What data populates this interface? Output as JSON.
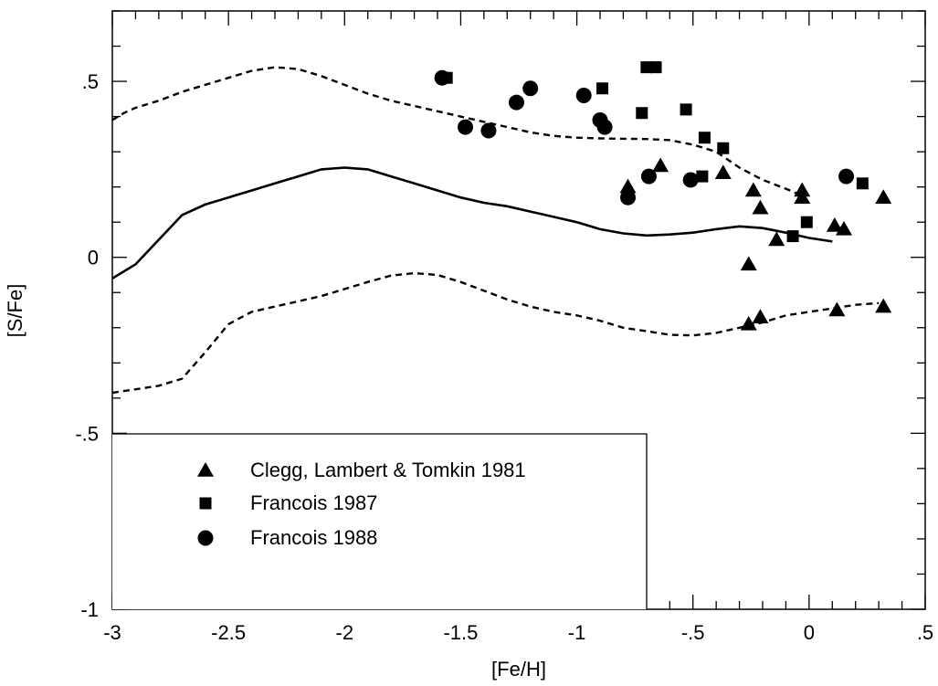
{
  "chart_data": {
    "type": "scatter",
    "title": "",
    "xlabel": "[Fe/H]",
    "ylabel": "[S/Fe]",
    "xlim": [
      -3,
      0.5
    ],
    "ylim": [
      -1,
      0.7
    ],
    "x_ticks": [
      -3,
      -2.5,
      -2,
      -1.5,
      -1,
      -0.5,
      0,
      0.5
    ],
    "x_tick_labels": [
      "-3",
      "-2.5",
      "-2",
      "-1.5",
      "-1",
      "-.5",
      "0",
      ".5"
    ],
    "y_ticks": [
      -1,
      -0.5,
      0,
      0.5
    ],
    "y_tick_labels": [
      "-1",
      "-.5",
      "0",
      ".5"
    ],
    "x_minor_step": 0.1,
    "y_minor_step": 0.1,
    "grid": false,
    "legend_position": "bottom-left",
    "series": [
      {
        "name": "Clegg, Lambert & Tomkin 1981",
        "marker": "triangle",
        "points": [
          [
            -0.78,
            0.2
          ],
          [
            -0.64,
            0.26
          ],
          [
            -0.37,
            0.24
          ],
          [
            -0.24,
            0.19
          ],
          [
            -0.21,
            0.14
          ],
          [
            -0.03,
            0.19
          ],
          [
            -0.03,
            0.17
          ],
          [
            -0.14,
            0.05
          ],
          [
            -0.26,
            -0.02
          ],
          [
            0.11,
            0.09
          ],
          [
            0.15,
            0.08
          ],
          [
            0.32,
            0.17
          ],
          [
            -0.26,
            -0.19
          ],
          [
            -0.21,
            -0.17
          ],
          [
            0.12,
            -0.15
          ],
          [
            0.32,
            -0.14
          ]
        ]
      },
      {
        "name": "Francois 1987",
        "marker": "square",
        "points": [
          [
            -1.56,
            0.51
          ],
          [
            -0.89,
            0.48
          ],
          [
            -0.72,
            0.41
          ],
          [
            -0.7,
            0.54
          ],
          [
            -0.66,
            0.54
          ],
          [
            -0.53,
            0.42
          ],
          [
            -0.45,
            0.34
          ],
          [
            -0.37,
            0.31
          ],
          [
            -0.46,
            0.23
          ],
          [
            -0.01,
            0.1
          ],
          [
            -0.07,
            0.06
          ],
          [
            0.23,
            0.21
          ]
        ]
      },
      {
        "name": "Francois 1988",
        "marker": "circle",
        "points": [
          [
            -1.58,
            0.51
          ],
          [
            -1.2,
            0.48
          ],
          [
            -0.97,
            0.46
          ],
          [
            -1.26,
            0.44
          ],
          [
            -0.9,
            0.39
          ],
          [
            -0.88,
            0.37
          ],
          [
            -1.48,
            0.37
          ],
          [
            -1.38,
            0.36
          ],
          [
            -0.69,
            0.23
          ],
          [
            -0.51,
            0.22
          ],
          [
            -0.78,
            0.17
          ],
          [
            0.16,
            0.23
          ]
        ]
      }
    ],
    "lines": [
      {
        "style": "solid",
        "points": [
          [
            -3.0,
            -0.06
          ],
          [
            -2.9,
            -0.02
          ],
          [
            -2.8,
            0.05
          ],
          [
            -2.7,
            0.12
          ],
          [
            -2.6,
            0.15
          ],
          [
            -2.5,
            0.17
          ],
          [
            -2.4,
            0.19
          ],
          [
            -2.3,
            0.21
          ],
          [
            -2.2,
            0.23
          ],
          [
            -2.1,
            0.25
          ],
          [
            -2.0,
            0.255
          ],
          [
            -1.9,
            0.25
          ],
          [
            -1.8,
            0.23
          ],
          [
            -1.7,
            0.21
          ],
          [
            -1.6,
            0.19
          ],
          [
            -1.5,
            0.17
          ],
          [
            -1.4,
            0.155
          ],
          [
            -1.3,
            0.145
          ],
          [
            -1.2,
            0.13
          ],
          [
            -1.1,
            0.115
          ],
          [
            -1.0,
            0.1
          ],
          [
            -0.9,
            0.08
          ],
          [
            -0.8,
            0.068
          ],
          [
            -0.7,
            0.062
          ],
          [
            -0.6,
            0.065
          ],
          [
            -0.5,
            0.07
          ],
          [
            -0.4,
            0.08
          ],
          [
            -0.3,
            0.088
          ],
          [
            -0.2,
            0.083
          ],
          [
            -0.1,
            0.07
          ],
          [
            0.0,
            0.055
          ],
          [
            0.1,
            0.045
          ]
        ]
      },
      {
        "style": "dashed",
        "points": [
          [
            -3.0,
            0.39
          ],
          [
            -2.95,
            0.41
          ],
          [
            -2.9,
            0.425
          ],
          [
            -2.8,
            0.445
          ],
          [
            -2.7,
            0.47
          ],
          [
            -2.6,
            0.49
          ],
          [
            -2.5,
            0.51
          ],
          [
            -2.4,
            0.53
          ],
          [
            -2.3,
            0.54
          ],
          [
            -2.2,
            0.535
          ],
          [
            -2.1,
            0.515
          ],
          [
            -2.0,
            0.49
          ],
          [
            -1.9,
            0.465
          ],
          [
            -1.8,
            0.445
          ],
          [
            -1.7,
            0.43
          ],
          [
            -1.6,
            0.415
          ],
          [
            -1.5,
            0.4
          ],
          [
            -1.4,
            0.385
          ],
          [
            -1.3,
            0.37
          ],
          [
            -1.2,
            0.355
          ],
          [
            -1.1,
            0.345
          ],
          [
            -1.0,
            0.34
          ],
          [
            -0.9,
            0.338
          ],
          [
            -0.8,
            0.337
          ],
          [
            -0.7,
            0.336
          ],
          [
            -0.6,
            0.333
          ],
          [
            -0.5,
            0.32
          ],
          [
            -0.4,
            0.3
          ],
          [
            -0.3,
            0.255
          ],
          [
            -0.2,
            0.22
          ],
          [
            -0.1,
            0.195
          ],
          [
            -0.03,
            0.175
          ]
        ]
      },
      {
        "style": "dashed",
        "points": [
          [
            -3.0,
            -0.385
          ],
          [
            -2.9,
            -0.375
          ],
          [
            -2.8,
            -0.365
          ],
          [
            -2.7,
            -0.345
          ],
          [
            -2.6,
            -0.27
          ],
          [
            -2.5,
            -0.19
          ],
          [
            -2.4,
            -0.155
          ],
          [
            -2.3,
            -0.14
          ],
          [
            -2.2,
            -0.125
          ],
          [
            -2.1,
            -0.11
          ],
          [
            -2.0,
            -0.09
          ],
          [
            -1.9,
            -0.07
          ],
          [
            -1.8,
            -0.052
          ],
          [
            -1.7,
            -0.045
          ],
          [
            -1.6,
            -0.05
          ],
          [
            -1.5,
            -0.07
          ],
          [
            -1.4,
            -0.095
          ],
          [
            -1.3,
            -0.12
          ],
          [
            -1.2,
            -0.14
          ],
          [
            -1.1,
            -0.155
          ],
          [
            -1.0,
            -0.165
          ],
          [
            -0.9,
            -0.18
          ],
          [
            -0.8,
            -0.2
          ],
          [
            -0.7,
            -0.21
          ],
          [
            -0.6,
            -0.22
          ],
          [
            -0.5,
            -0.222
          ],
          [
            -0.4,
            -0.215
          ],
          [
            -0.3,
            -0.2
          ],
          [
            -0.2,
            -0.185
          ],
          [
            -0.1,
            -0.165
          ],
          [
            0.0,
            -0.155
          ],
          [
            0.1,
            -0.145
          ],
          [
            0.2,
            -0.135
          ],
          [
            0.3,
            -0.13
          ]
        ]
      }
    ]
  }
}
